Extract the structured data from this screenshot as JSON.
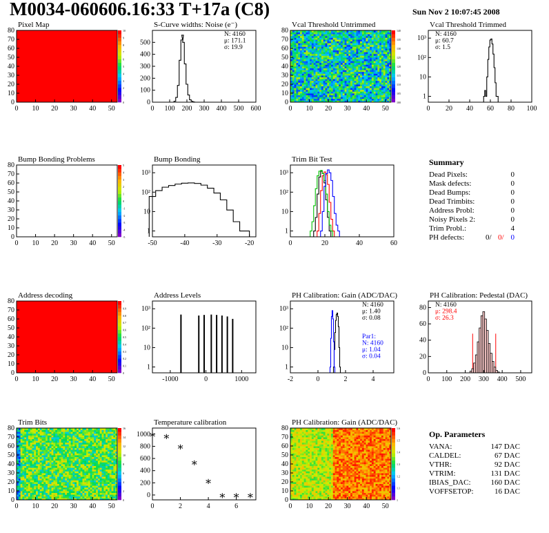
{
  "header": {
    "title": "M0034-060606.16:33 T+17a (C8)",
    "date": "Sun Nov  2 10:07:45 2008"
  },
  "colors": {
    "red": "#ff0000",
    "blue": "#0000ff",
    "green": "#00c000"
  },
  "chart_data": [
    {
      "id": "pixel-map",
      "type": "heatmap",
      "title": "Pixel Map",
      "xticks": [
        "0",
        "10",
        "20",
        "30",
        "40",
        "50"
      ],
      "yticks": [
        "0",
        "10",
        "20",
        "30",
        "40",
        "50",
        "60",
        "70",
        "80"
      ],
      "fill": "uniform",
      "zticks": [
        "0",
        "1",
        "2",
        "3",
        "4",
        "5",
        "6",
        "7",
        "8",
        "9",
        "10"
      ]
    },
    {
      "id": "scurve-noise",
      "type": "line",
      "title": "S-Curve widths: Noise (e⁻)",
      "xticks": [
        "0",
        "100",
        "200",
        "300",
        "400",
        "500",
        "600"
      ],
      "yticks": [
        "0",
        "100",
        "200",
        "300",
        "400",
        "500"
      ],
      "stats": [
        "N: 4160",
        "μ: 171.1",
        "σ: 19.9"
      ],
      "xlim": [
        0,
        600
      ],
      "ylim": [
        0,
        600
      ],
      "x": [
        120,
        130,
        140,
        150,
        160,
        170,
        175,
        180,
        190,
        200,
        210,
        220,
        230,
        240,
        250
      ],
      "y": [
        0,
        8,
        40,
        140,
        350,
        520,
        560,
        500,
        320,
        150,
        60,
        20,
        8,
        2,
        0
      ]
    },
    {
      "id": "vcal-untrimmed",
      "type": "heatmap",
      "title": "Vcal Threshold Untrimmed",
      "xticks": [
        "0",
        "10",
        "20",
        "30",
        "40",
        "50"
      ],
      "yticks": [
        "0",
        "10",
        "20",
        "30",
        "40",
        "50",
        "60",
        "70",
        "80"
      ],
      "fill": "noise",
      "zticks": [
        "100",
        "105",
        "110",
        "115",
        "120",
        "125",
        "130",
        "135",
        "140"
      ]
    },
    {
      "id": "vcal-trimmed",
      "type": "line",
      "title": "Vcal Threshold Trimmed",
      "ylog": true,
      "xticks": [
        "0",
        "20",
        "40",
        "60",
        "80",
        "100"
      ],
      "yticks": [
        "1",
        "10",
        "10²",
        "10³"
      ],
      "stats": [
        "N: 4160",
        "μ: 60.7",
        "σ:   1.5"
      ],
      "xlim": [
        0,
        100
      ],
      "ylim": [
        0.5,
        2500
      ],
      "x": [
        54,
        55,
        56,
        57,
        58,
        59,
        60,
        61,
        62,
        63,
        64,
        65,
        66,
        67
      ],
      "y": [
        1,
        2,
        1,
        10,
        80,
        350,
        800,
        900,
        500,
        150,
        30,
        5,
        1,
        1
      ]
    },
    {
      "id": "bump-problems",
      "type": "heatmap",
      "title": "Bump Bonding Problems",
      "xticks": [
        "0",
        "10",
        "20",
        "30",
        "40",
        "50"
      ],
      "yticks": [
        "0",
        "10",
        "20",
        "30",
        "40",
        "50",
        "60",
        "70",
        "80"
      ],
      "fill": "empty",
      "zticks": [
        "-5",
        "-4",
        "-3",
        "-2",
        "-1",
        "0",
        "1",
        "2",
        "3",
        "4",
        "5"
      ]
    },
    {
      "id": "bump-bonding",
      "type": "line",
      "title": "Bump Bonding",
      "ylog": true,
      "xticks": [
        "-50",
        "-40",
        "-30",
        "-20"
      ],
      "yticks": [
        "1",
        "10",
        "10²",
        "10³"
      ],
      "xlim": [
        -50,
        -18
      ],
      "ylim": [
        0.5,
        2500
      ],
      "x": [
        -50,
        -48,
        -46,
        -44,
        -42,
        -40,
        -38,
        -36,
        -34,
        -32,
        -30,
        -28,
        -26,
        -24,
        -22,
        -21
      ],
      "y": [
        60,
        120,
        180,
        220,
        260,
        290,
        300,
        280,
        230,
        160,
        90,
        40,
        12,
        3,
        1,
        1
      ]
    },
    {
      "id": "trim-bit-test",
      "type": "line",
      "title": "Trim Bit Test",
      "ylog": true,
      "xticks": [
        "0",
        "20",
        "40",
        "60"
      ],
      "yticks": [
        "1",
        "10",
        "10²",
        "10³"
      ],
      "xlim": [
        0,
        60
      ],
      "ylim": [
        0.5,
        2500
      ],
      "series": [
        {
          "color": "#000000",
          "x": [
            14,
            15,
            16,
            17,
            18,
            19,
            20,
            21,
            22,
            23
          ],
          "y": [
            1,
            5,
            80,
            600,
            1200,
            900,
            300,
            40,
            5,
            1
          ]
        },
        {
          "color": "#ff0000",
          "x": [
            16,
            17,
            18,
            19,
            20,
            21,
            22,
            23,
            24,
            25
          ],
          "y": [
            1,
            8,
            120,
            700,
            1100,
            800,
            250,
            30,
            4,
            1
          ]
        },
        {
          "color": "#00c000",
          "x": [
            12,
            13,
            14,
            15,
            16,
            17,
            18,
            19,
            20,
            21,
            22,
            23,
            24
          ],
          "y": [
            1,
            3,
            20,
            150,
            700,
            1200,
            1300,
            900,
            400,
            80,
            10,
            2,
            1
          ]
        },
        {
          "color": "#0000ff",
          "x": [
            18,
            19,
            20,
            21,
            22,
            23,
            24,
            25,
            26,
            27,
            28
          ],
          "y": [
            1,
            10,
            200,
            900,
            1400,
            1000,
            400,
            60,
            8,
            2,
            1
          ]
        }
      ]
    },
    {
      "id": "address-decoding",
      "type": "heatmap",
      "title": "Address decoding",
      "xticks": [
        "0",
        "10",
        "20",
        "30",
        "40",
        "50"
      ],
      "yticks": [
        "0",
        "10",
        "20",
        "30",
        "40",
        "50",
        "60",
        "70",
        "80"
      ],
      "fill": "uniform",
      "zticks": [
        "0",
        "0.1",
        "0.2",
        "0.3",
        "0.4",
        "0.5",
        "0.6",
        "0.7",
        "0.8",
        "0.9",
        "1"
      ]
    },
    {
      "id": "address-levels",
      "type": "bar",
      "title": "Address Levels",
      "ylog": true,
      "xticks": [
        "-1000",
        "0",
        "1000"
      ],
      "yticks": [
        "1",
        "10",
        "10²",
        "10³"
      ],
      "xlim": [
        -1500,
        1400
      ],
      "ylim": [
        0.5,
        2500
      ],
      "x": [
        -700,
        -200,
        -50,
        150,
        300,
        450,
        600,
        750
      ],
      "y": [
        500,
        450,
        480,
        500,
        480,
        450,
        400,
        300
      ]
    },
    {
      "id": "ph-gain",
      "type": "line",
      "title": "PH Calibration: Gain (ADC/DAC)",
      "ylog": true,
      "xticks": [
        "-2",
        "0",
        "2",
        "4"
      ],
      "yticks": [
        "1",
        "10",
        "10²",
        "10³"
      ],
      "stats": [
        "N: 4160",
        "μ: 1.40",
        "σ: 0.08"
      ],
      "stats2": [
        "Par1:",
        "N: 4160",
        "μ: 1.04",
        "σ: 0.04"
      ],
      "xlim": [
        -2,
        5.5
      ],
      "ylim": [
        0.5,
        2500
      ],
      "series": [
        {
          "color": "#000000",
          "x": [
            1.15,
            1.2,
            1.25,
            1.3,
            1.35,
            1.4,
            1.45,
            1.5,
            1.55,
            1.6
          ],
          "y": [
            1,
            8,
            60,
            250,
            500,
            600,
            400,
            120,
            10,
            1
          ]
        },
        {
          "color": "#0000ff",
          "x": [
            0.9,
            0.95,
            1.0,
            1.05,
            1.1,
            1.15,
            1.2
          ],
          "y": [
            1,
            30,
            400,
            800,
            300,
            20,
            1
          ]
        }
      ]
    },
    {
      "id": "ph-pedestal",
      "type": "bar",
      "title": "PH Calibration: Pedestal (DAC)",
      "xticks": [
        "0",
        "100",
        "200",
        "300",
        "400",
        "500"
      ],
      "yticks": [
        "0",
        "20",
        "40",
        "60",
        "80"
      ],
      "stats": [
        "N: 4160",
        "μ: 298.4",
        "σ: 26.3"
      ],
      "xlim": [
        0,
        560
      ],
      "ylim": [
        0,
        88
      ],
      "x": [
        230,
        240,
        250,
        260,
        270,
        280,
        290,
        300,
        310,
        320,
        330,
        340,
        350,
        360,
        370,
        380
      ],
      "y": [
        2,
        5,
        12,
        22,
        38,
        55,
        70,
        75,
        66,
        52,
        36,
        24,
        14,
        7,
        3,
        1
      ]
    },
    {
      "id": "trim-bits",
      "type": "heatmap",
      "title": "Trim Bits",
      "xticks": [
        "0",
        "10",
        "20",
        "30",
        "40",
        "50"
      ],
      "yticks": [
        "0",
        "10",
        "20",
        "30",
        "40",
        "50",
        "60",
        "70",
        "80"
      ],
      "fill": "trim",
      "zticks": [
        "0",
        "2",
        "4",
        "6",
        "8",
        "10",
        "12",
        "14",
        "16"
      ]
    },
    {
      "id": "temperature-calibration",
      "type": "scatter",
      "title": "Temperature calibration",
      "xticks": [
        "0",
        "2",
        "4",
        "6"
      ],
      "yticks": [
        "0",
        "200",
        "400",
        "600",
        "800",
        "1000"
      ],
      "xlim": [
        0,
        7.4
      ],
      "ylim": [
        -80,
        1100
      ],
      "x": [
        0,
        1,
        2,
        3,
        4,
        5,
        6,
        7
      ],
      "y": [
        1000,
        970,
        800,
        540,
        230,
        0,
        0,
        0
      ]
    },
    {
      "id": "ph-gain-map",
      "type": "heatmap",
      "title": "PH Calibration: Gain (ADC/DAC)",
      "xticks": [
        "0",
        "10",
        "20",
        "30",
        "40",
        "50"
      ],
      "yticks": [
        "0",
        "10",
        "20",
        "30",
        "40",
        "50",
        "60",
        "70",
        "80"
      ],
      "fill": "gain",
      "zticks": [
        "1",
        "1.1",
        "1.2",
        "1.3",
        "1.4",
        "1.5",
        "1.6"
      ]
    }
  ],
  "summary": {
    "title": "Summary",
    "rows": [
      {
        "k": "Dead Pixels:",
        "v": "0"
      },
      {
        "k": "Mask defects:",
        "v": "0"
      },
      {
        "k": "Dead Bumps:",
        "v": "0"
      },
      {
        "k": "Dead Trimbits:",
        "v": "0"
      },
      {
        "k": "Address Probl:",
        "v": "0"
      },
      {
        "k": "Noisy Pixels 2:",
        "v": "0"
      },
      {
        "k": "Trim Probl.:",
        "v": "4"
      }
    ],
    "ph": {
      "k": "PH defects:",
      "v1": "0/",
      "v2": "0/",
      "v3": "0"
    }
  },
  "params": {
    "title": "Op. Parameters",
    "rows": [
      {
        "k": "VANA:",
        "v": "147 DAC"
      },
      {
        "k": "CALDEL:",
        "v": "67 DAC"
      },
      {
        "k": "VTHR:",
        "v": "92 DAC"
      },
      {
        "k": "VTRIM:",
        "v": "131 DAC"
      },
      {
        "k": "IBIAS_DAC:",
        "v": "160 DAC"
      },
      {
        "k": "VOFFSETOP:",
        "v": "16 DAC"
      }
    ]
  }
}
